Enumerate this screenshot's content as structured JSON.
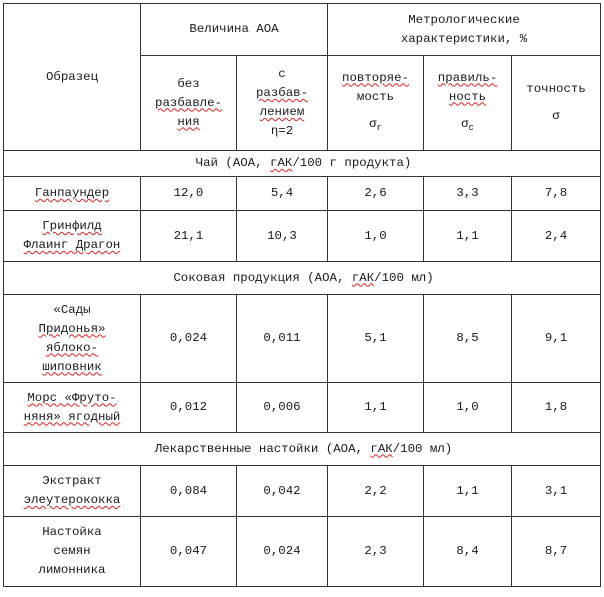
{
  "header": {
    "sample": "Образец",
    "aoa": "Величина АОА",
    "metro_line1": "Метрологические",
    "metro_line2": "характеристики, %",
    "no_dilution": [
      "без",
      "разбавле-",
      "ния"
    ],
    "dilution": [
      "с",
      "разбав-",
      "лением",
      "η=2"
    ],
    "repeat_word1": "повторяе-",
    "repeat_word2": "мость",
    "repeat_sym": "σ",
    "repeat_sub": "r",
    "correct_word1": "правиль-",
    "correct_word2": "ность",
    "correct_sym": "σ",
    "correct_sub": "c",
    "accuracy_word": "точность",
    "accuracy_sym": "σ"
  },
  "sections": [
    {
      "title_pre": "Чай (АОА, ",
      "title_unit": "гАК",
      "title_post": "/100 г продукта)",
      "rows": [
        {
          "name": [
            "Ганпаундер"
          ],
          "v1": "12,0",
          "v2": "5,4",
          "r": "2,6",
          "c": "3,3",
          "a": "7,8"
        },
        {
          "name": [
            "Гринфилд",
            "Флаинг Драгон"
          ],
          "v1": "21,1",
          "v2": "10,3",
          "r": "1,0",
          "c": "1,1",
          "a": "2,4"
        }
      ]
    },
    {
      "title_pre": "Соковая продукция (АОА, ",
      "title_unit": "гАК",
      "title_post": "/100 мл)",
      "rows": [
        {
          "name": [
            "«Сады",
            "Придонья»",
            "яблоко-",
            "шиповник"
          ],
          "v1": "0,024",
          "v2": "0,011",
          "r": "5,1",
          "c": "8,5",
          "a": "9,1"
        },
        {
          "name": [
            "Морс «Фруто-",
            "няня» ягодный"
          ],
          "v1": "0,012",
          "v2": "0,006",
          "r": "1,1",
          "c": "1,0",
          "a": "1,8"
        }
      ]
    },
    {
      "title_pre": "Лекарственные настойки (АОА, ",
      "title_unit": "гАК",
      "title_post": "/100 мл)",
      "rows": [
        {
          "name": [
            "Экстракт",
            "элеутерококка"
          ],
          "v1": "0,084",
          "v2": "0,042",
          "r": "2,2",
          "c": "1,1",
          "a": "3,1"
        },
        {
          "name": [
            "Настойка",
            "семян",
            "лимонника"
          ],
          "v1": "0,047",
          "v2": "0,024",
          "r": "2,3",
          "c": "8,4",
          "a": "8,7"
        }
      ]
    }
  ]
}
